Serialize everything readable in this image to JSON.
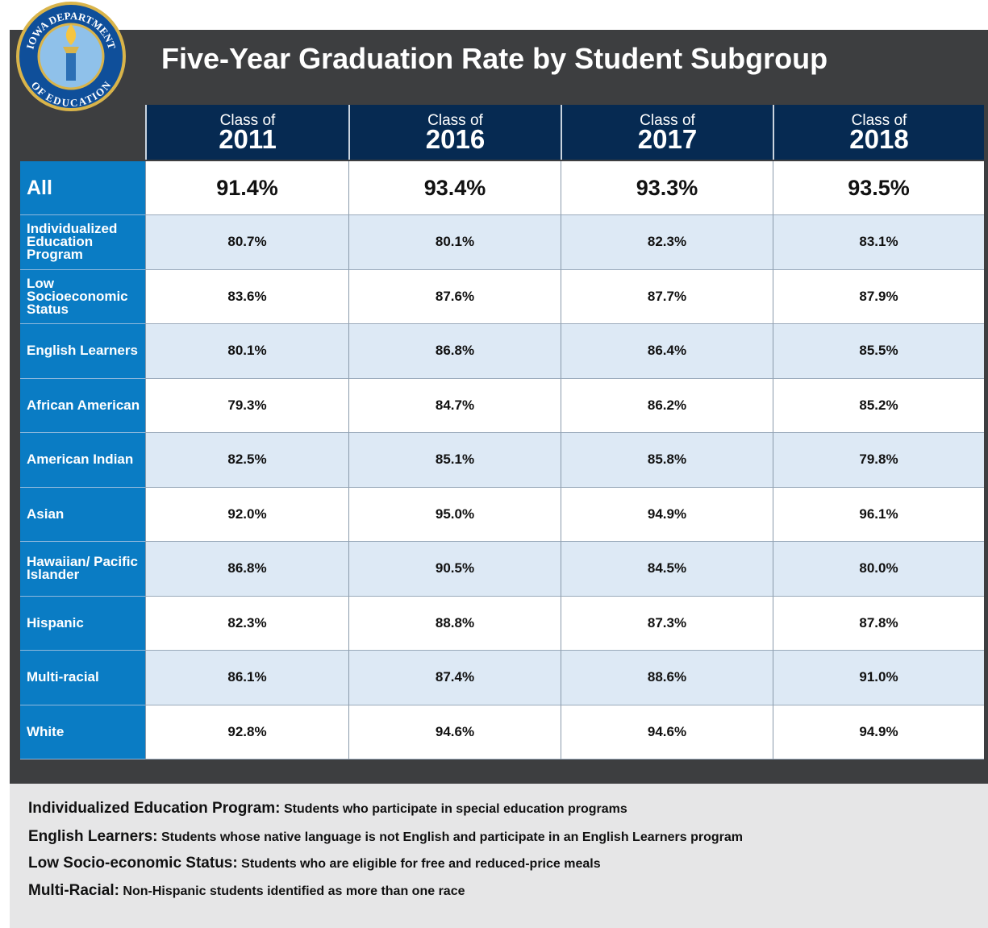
{
  "logo": {
    "top": "IOWA DEPARTMENT",
    "bottom": "OF EDUCATION"
  },
  "title": "Five-Year Graduation Rate by Student Subgroup",
  "columns": [
    {
      "prefix": "Class of",
      "year": "2011"
    },
    {
      "prefix": "Class of",
      "year": "2016"
    },
    {
      "prefix": "Class of",
      "year": "2017"
    },
    {
      "prefix": "Class of",
      "year": "2018"
    }
  ],
  "rows": [
    {
      "label": "All",
      "values": [
        "91.4%",
        "93.4%",
        "93.3%",
        "93.5%"
      ]
    },
    {
      "label": "Individualized Education Program",
      "values": [
        "80.7%",
        "80.1%",
        "82.3%",
        "83.1%"
      ]
    },
    {
      "label": "Low Socioeconomic Status",
      "values": [
        "83.6%",
        "87.6%",
        "87.7%",
        "87.9%"
      ]
    },
    {
      "label": "English Learners",
      "values": [
        "80.1%",
        "86.8%",
        "86.4%",
        "85.5%"
      ]
    },
    {
      "label": "African American",
      "values": [
        "79.3%",
        "84.7%",
        "86.2%",
        "85.2%"
      ]
    },
    {
      "label": "American Indian",
      "values": [
        "82.5%",
        "85.1%",
        "85.8%",
        "79.8%"
      ]
    },
    {
      "label": "Asian",
      "values": [
        "92.0%",
        "95.0%",
        "94.9%",
        "96.1%"
      ]
    },
    {
      "label": "Hawaiian/ Pacific Islander",
      "values": [
        "86.8%",
        "90.5%",
        "84.5%",
        "80.0%"
      ]
    },
    {
      "label": "Hispanic",
      "values": [
        "82.3%",
        "88.8%",
        "87.3%",
        "87.8%"
      ]
    },
    {
      "label": "Multi-racial",
      "values": [
        "86.1%",
        "87.4%",
        "88.6%",
        "91.0%"
      ]
    },
    {
      "label": "White",
      "values": [
        "92.8%",
        "94.6%",
        "94.6%",
        "94.9%"
      ]
    }
  ],
  "notes": [
    {
      "term": "Individualized Education Program:",
      "text": "Students who participate in special education programs"
    },
    {
      "term": "English Learners:",
      "text": "Students whose native language is not English and participate in an English Learners program"
    },
    {
      "term": "Low Socio-economic Status:",
      "text": "Students who are eligible for free and reduced-price meals"
    },
    {
      "term": "Multi-Racial:",
      "text": "Non-Hispanic students identified as more than one race"
    }
  ]
}
